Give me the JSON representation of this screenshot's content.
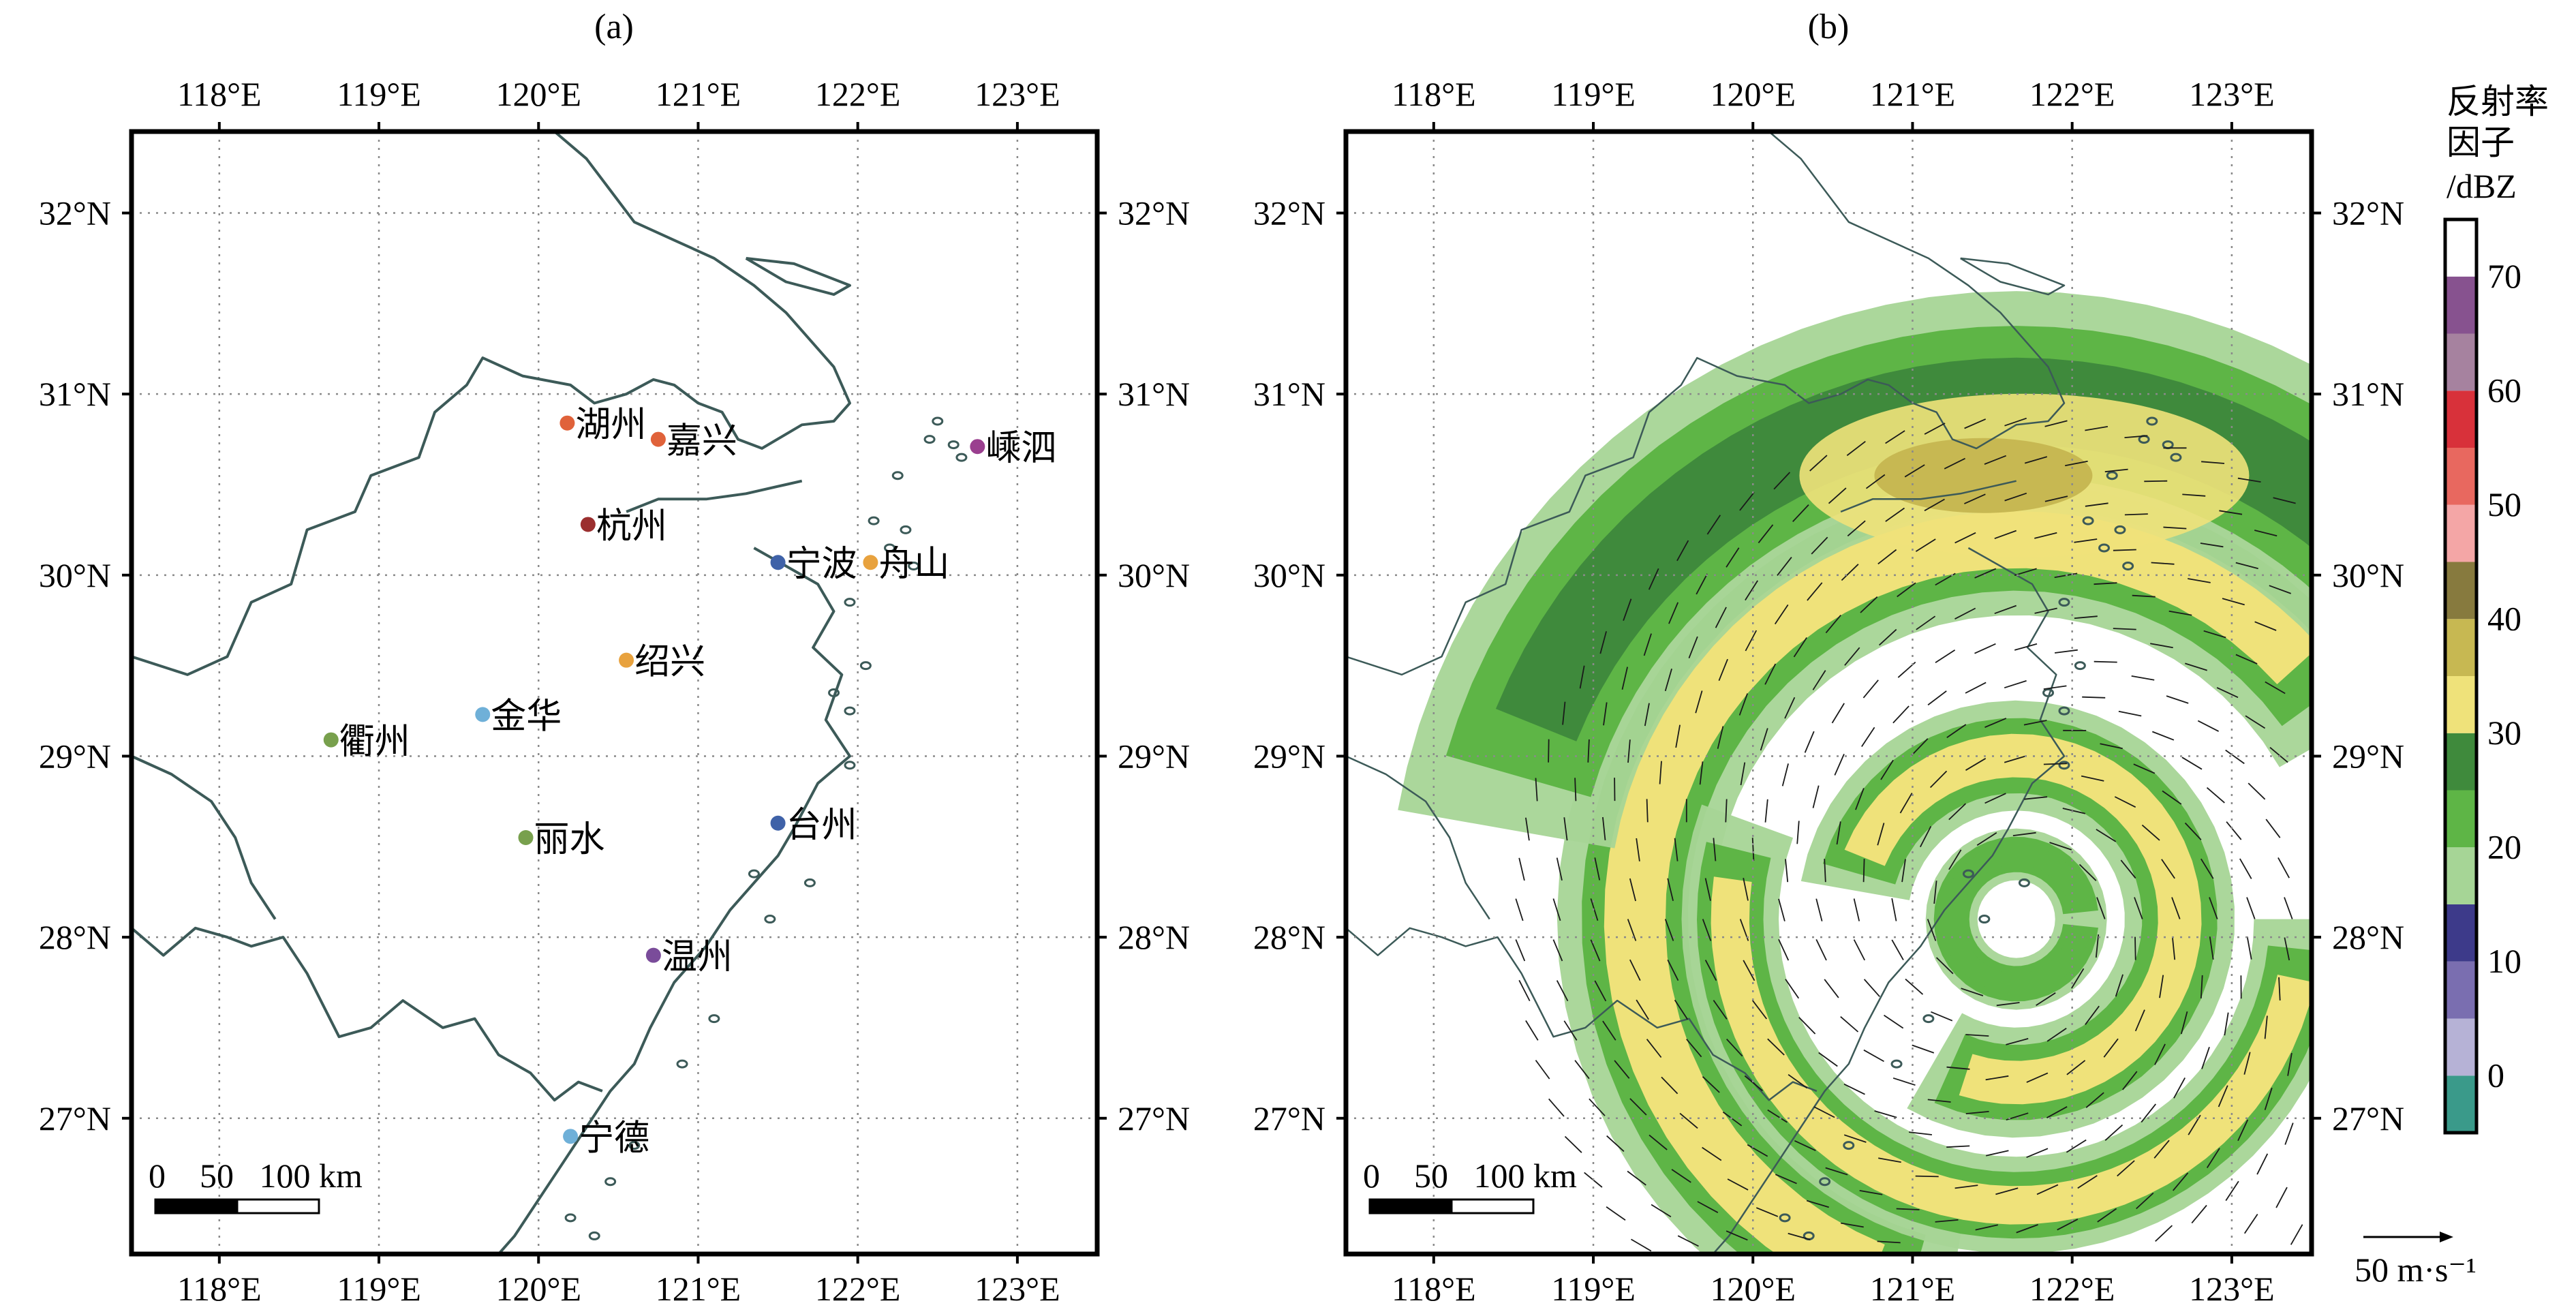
{
  "panels": [
    {
      "label": "(a)",
      "scale_label": "0    50   100 km"
    },
    {
      "label": "(b)",
      "scale_label": "0    50   100 km"
    }
  ],
  "axes": {
    "lon_ticks": [
      "118°E",
      "119°E",
      "120°E",
      "121°E",
      "122°E",
      "123°E"
    ],
    "lat_ticks": [
      "32°N",
      "31°N",
      "30°N",
      "29°N",
      "28°N",
      "27°N"
    ],
    "lon_range": [
      117.45,
      123.5
    ],
    "lat_range": [
      26.25,
      32.45
    ]
  },
  "cities": [
    {
      "name": "湖州",
      "lon": 120.18,
      "lat": 30.84,
      "color": "#e0623a"
    },
    {
      "name": "嘉兴",
      "lon": 120.75,
      "lat": 30.75,
      "color": "#e0623a"
    },
    {
      "name": "嵊泗",
      "lon": 122.75,
      "lat": 30.71,
      "color": "#9a3f8f"
    },
    {
      "name": "杭州",
      "lon": 120.31,
      "lat": 30.28,
      "color": "#9b2f2f"
    },
    {
      "name": "宁波",
      "lon": 121.5,
      "lat": 30.07,
      "color": "#3f62a8"
    },
    {
      "name": "舟山",
      "lon": 122.08,
      "lat": 30.07,
      "color": "#e8a23e"
    },
    {
      "name": "绍兴",
      "lon": 120.55,
      "lat": 29.53,
      "color": "#e8a23e"
    },
    {
      "name": "金华",
      "lon": 119.65,
      "lat": 29.23,
      "color": "#6fb0d8"
    },
    {
      "name": "衢州",
      "lon": 118.7,
      "lat": 29.09,
      "color": "#78a04d"
    },
    {
      "name": "台州",
      "lon": 121.5,
      "lat": 28.63,
      "color": "#3f62a8"
    },
    {
      "name": "丽水",
      "lon": 119.92,
      "lat": 28.55,
      "color": "#78a04d"
    },
    {
      "name": "温州",
      "lon": 120.72,
      "lat": 27.9,
      "color": "#7a4c9a"
    },
    {
      "name": "宁德",
      "lon": 120.2,
      "lat": 26.9,
      "color": "#6fb0d8"
    }
  ],
  "colorbar": {
    "title_lines": [
      "反射率",
      "因子",
      "/dBZ"
    ],
    "tick_labels": [
      "0",
      "10",
      "20",
      "30",
      "40",
      "50",
      "60",
      "70"
    ],
    "min": -5,
    "max": 75,
    "colors": [
      "#3a9a8a",
      "#b6b2d6",
      "#7a6eb0",
      "#3d3a8a",
      "#a6d596",
      "#5eb546",
      "#3f8a3c",
      "#efe27a",
      "#c7b852",
      "#877a3e",
      "#f4a6a6",
      "#e8685f",
      "#d8313a",
      "#a6829f",
      "#87528f",
      "#ffffff"
    ]
  },
  "wind_legend": {
    "label": "50 m·s⁻¹",
    "speed": 50
  },
  "colors": {
    "coast": "#3c5a58",
    "grid": "#8a8a8a",
    "frame": "#000000"
  }
}
